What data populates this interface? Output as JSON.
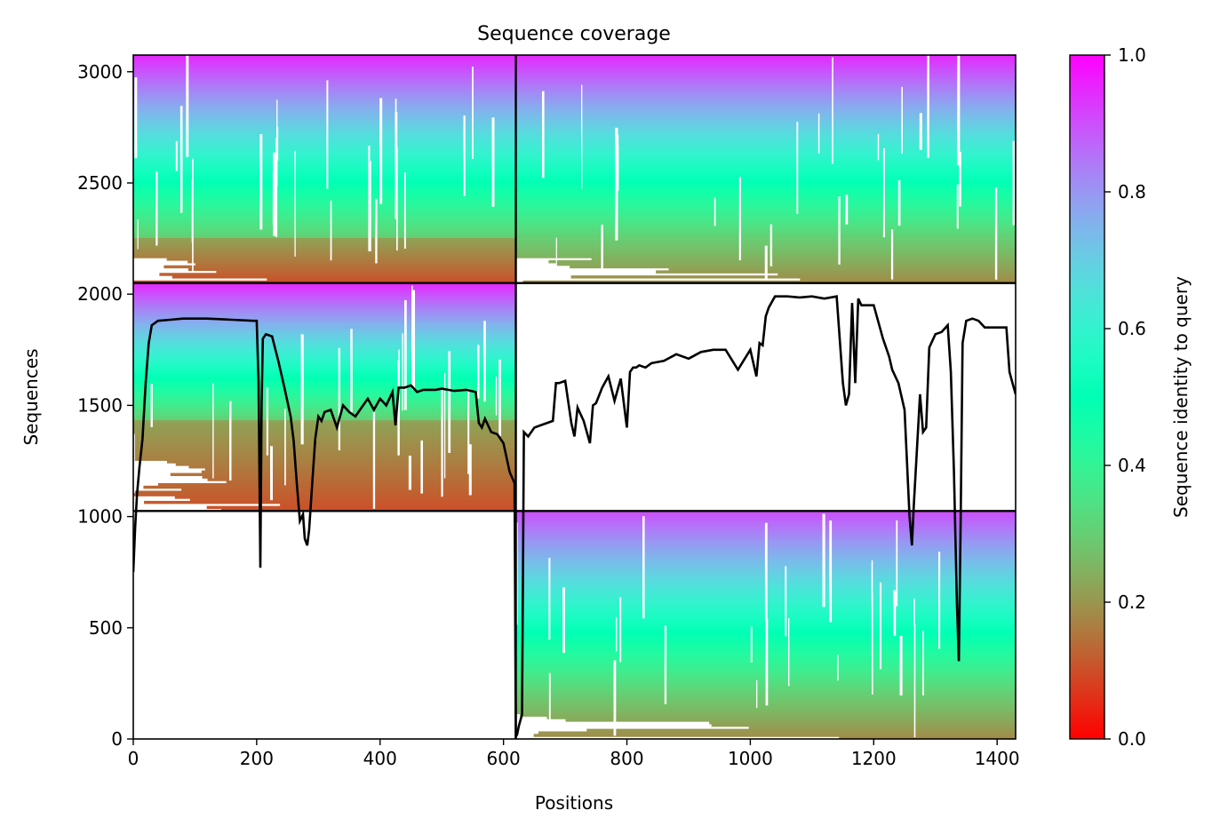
{
  "chart_data": {
    "type": "heatmap",
    "title": "Sequence coverage",
    "xlabel": "Positions",
    "ylabel": "Sequences",
    "xlim": [
      0,
      1430
    ],
    "ylim": [
      0,
      3075
    ],
    "xticks": [
      0,
      200,
      400,
      600,
      800,
      1000,
      1200,
      1400
    ],
    "yticks": [
      0,
      500,
      1000,
      1500,
      2000,
      2500,
      3000
    ],
    "colorbar": {
      "label": "Sequence identity to query",
      "ticks": [
        "0.0",
        "0.2",
        "0.4",
        "0.6",
        "0.8",
        "1.0"
      ],
      "range": [
        0,
        1
      ],
      "colormap": "rainbow"
    },
    "chain_boundary_x": 620,
    "msa_blocks": [
      {
        "name": "chain-1-paired",
        "x": [
          0,
          620
        ],
        "y": [
          2050,
          3075
        ],
        "identity_top": 0.95,
        "identity_bottom": 0.1,
        "low_identity_from": 0.2
      },
      {
        "name": "chain-2-paired",
        "x": [
          620,
          1430
        ],
        "y": [
          2050,
          3075
        ],
        "identity_top": 0.95,
        "identity_bottom": 0.18,
        "low_identity_from": 0.2
      },
      {
        "name": "chain-1-unpaired",
        "x": [
          0,
          620
        ],
        "y": [
          1025,
          2050
        ],
        "identity_top": 0.95,
        "identity_bottom": 0.1,
        "low_identity_from": 0.4
      },
      {
        "name": "chain-2-unpaired",
        "x": [
          620,
          1430
        ],
        "y": [
          0,
          1025
        ],
        "identity_top": 0.9,
        "identity_bottom": 0.18,
        "low_identity_from": 0.2
      }
    ],
    "coverage": {
      "name": "",
      "x": [
        0,
        3,
        6,
        10,
        15,
        20,
        25,
        30,
        40,
        60,
        80,
        120,
        160,
        195,
        200,
        203,
        206,
        208,
        210,
        215,
        225,
        235,
        245,
        255,
        260,
        265,
        270,
        275,
        278,
        282,
        285,
        290,
        295,
        300,
        305,
        310,
        320,
        330,
        340,
        350,
        360,
        370,
        380,
        390,
        400,
        410,
        420,
        425,
        430,
        440,
        450,
        460,
        470,
        480,
        490,
        500,
        520,
        540,
        555,
        560,
        565,
        570,
        580,
        590,
        600,
        610,
        618,
        620,
        622,
        625,
        630,
        633,
        640,
        650,
        660,
        670,
        680,
        685,
        690,
        700,
        710,
        715,
        720,
        730,
        740,
        745,
        750,
        760,
        770,
        780,
        790,
        800,
        805,
        810,
        815,
        820,
        830,
        840,
        860,
        880,
        900,
        920,
        940,
        960,
        980,
        1000,
        1010,
        1015,
        1020,
        1025,
        1030,
        1040,
        1060,
        1080,
        1100,
        1120,
        1140,
        1150,
        1155,
        1160,
        1165,
        1170,
        1175,
        1180,
        1190,
        1200,
        1215,
        1225,
        1230,
        1240,
        1250,
        1258,
        1262,
        1265,
        1270,
        1275,
        1280,
        1285,
        1290,
        1300,
        1310,
        1320,
        1325,
        1330,
        1335,
        1338,
        1341,
        1344,
        1350,
        1360,
        1370,
        1380,
        1400,
        1415,
        1420,
        1425,
        1430
      ],
      "y": [
        750,
        950,
        1100,
        1220,
        1350,
        1600,
        1780,
        1860,
        1880,
        1885,
        1890,
        1890,
        1885,
        1880,
        1880,
        1600,
        770,
        1500,
        1800,
        1820,
        1810,
        1700,
        1580,
        1450,
        1340,
        1150,
        980,
        1010,
        900,
        870,
        940,
        1150,
        1350,
        1450,
        1430,
        1470,
        1480,
        1400,
        1500,
        1470,
        1450,
        1490,
        1530,
        1480,
        1530,
        1500,
        1560,
        1410,
        1580,
        1580,
        1590,
        1560,
        1570,
        1570,
        1570,
        1575,
        1565,
        1570,
        1560,
        1420,
        1400,
        1440,
        1380,
        1370,
        1330,
        1200,
        1150,
        10,
        20,
        60,
        110,
        1380,
        1360,
        1400,
        1410,
        1420,
        1430,
        1600,
        1600,
        1610,
        1420,
        1360,
        1490,
        1430,
        1330,
        1500,
        1510,
        1580,
        1630,
        1520,
        1620,
        1400,
        1650,
        1670,
        1670,
        1680,
        1670,
        1690,
        1700,
        1730,
        1710,
        1740,
        1750,
        1750,
        1660,
        1750,
        1630,
        1780,
        1770,
        1900,
        1940,
        1990,
        1990,
        1985,
        1990,
        1980,
        1990,
        1600,
        1500,
        1550,
        1960,
        1600,
        1980,
        1950,
        1950,
        1950,
        1800,
        1720,
        1660,
        1600,
        1480,
        1000,
        870,
        1050,
        1300,
        1550,
        1380,
        1400,
        1760,
        1820,
        1830,
        1860,
        1650,
        1200,
        600,
        350,
        1000,
        1780,
        1880,
        1890,
        1880,
        1850,
        1850,
        1850,
        1650,
        1600,
        1550
      ]
    }
  }
}
